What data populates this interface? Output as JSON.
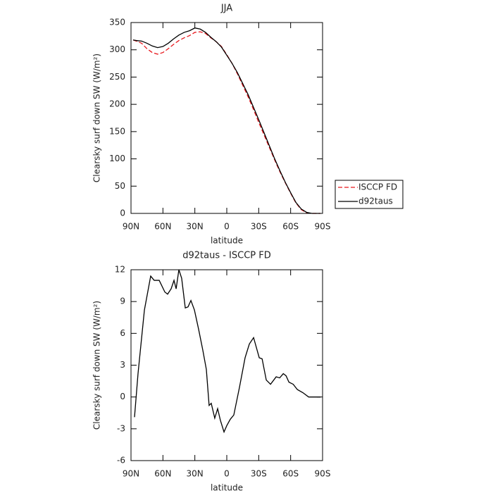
{
  "chart_data": [
    {
      "type": "line",
      "title": "JJA",
      "xlabel": "latitude",
      "ylabel": "Clearsky surf down SW (W/m²)",
      "x": [
        88,
        85,
        80,
        75,
        70,
        65,
        60,
        55,
        50,
        45,
        40,
        35,
        30,
        25,
        20,
        15,
        10,
        5,
        0,
        -5,
        -10,
        -15,
        -20,
        -25,
        -30,
        -35,
        -40,
        -45,
        -50,
        -55,
        -60,
        -65,
        -70,
        -75,
        -80,
        -85,
        -88
      ],
      "series": [
        {
          "name": "ISCCP FD",
          "color": "#e8171c",
          "linestyle": "dashed",
          "values": [
            318,
            316,
            312,
            302,
            295,
            292,
            295,
            302,
            310,
            317,
            322,
            326,
            332,
            333,
            330,
            322,
            315,
            306,
            291,
            275,
            256,
            235,
            214,
            191,
            167,
            144,
            121,
            98,
            76,
            56,
            37,
            19,
            7,
            1,
            0,
            0,
            0
          ]
        },
        {
          "name": "d92taus",
          "color": "#000000",
          "linestyle": "solid",
          "values": [
            318,
            317,
            316,
            312,
            307,
            304,
            306,
            312,
            320,
            327,
            332,
            335,
            340,
            338,
            332,
            323,
            315,
            305,
            290,
            275,
            258,
            238,
            218,
            195,
            172,
            148,
            124,
            100,
            78,
            57,
            38,
            20,
            8,
            2,
            0,
            0,
            0
          ]
        }
      ],
      "xlim": [
        90,
        -90
      ],
      "xticks": [
        {
          "value": 90,
          "label": "90N"
        },
        {
          "value": 60,
          "label": "60N"
        },
        {
          "value": 30,
          "label": "30N"
        },
        0,
        {
          "value": -30,
          "label": "30S"
        },
        {
          "value": -60,
          "label": "60S"
        },
        {
          "value": -90,
          "label": "90S"
        }
      ],
      "ylim": [
        0,
        350
      ],
      "yticks": [
        0,
        50,
        100,
        150,
        200,
        250,
        300,
        350
      ],
      "legend": "right"
    },
    {
      "type": "line",
      "title": "d92taus - ISCCP FD",
      "xlabel": "latitude",
      "ylabel": "Clearsky surf down SW (W/m²)",
      "x": [
        86.7,
        83.4,
        77.4,
        71.5,
        68.2,
        63.5,
        58.2,
        55.6,
        52.3,
        49.6,
        47.6,
        45,
        42.4,
        39,
        36.4,
        33.7,
        30.4,
        26.5,
        22.5,
        19.2,
        16.6,
        14.6,
        11.3,
        8.6,
        6,
        2.6,
        0,
        -3.3,
        -6.6,
        -11.9,
        -17.2,
        -21.2,
        -25.2,
        -30.5,
        -33.2,
        -37.1,
        -41.1,
        -46.4,
        -49.7,
        -53.1,
        -55.7,
        -58.4,
        -62.4,
        -66.3,
        -71.6,
        -76.9,
        -82.9,
        -88.2
      ],
      "series": [
        {
          "name": "d92taus - ISCCP FD",
          "color": "#000000",
          "linestyle": "solid",
          "values": [
            -1.9,
            2.2,
            8.2,
            11.4,
            11,
            11,
            9.9,
            9.7,
            10.2,
            11,
            10.2,
            12,
            11.2,
            8.4,
            8.5,
            9.1,
            8.2,
            6.4,
            4.4,
            2.6,
            -0.8,
            -0.6,
            -2,
            -1.1,
            -2.2,
            -3.3,
            -2.7,
            -2.1,
            -1.7,
            0.9,
            3.7,
            5,
            5.6,
            3.7,
            3.6,
            1.6,
            1.2,
            1.9,
            1.8,
            2.2,
            2,
            1.4,
            1.2,
            0.7,
            0.4,
            0,
            0,
            0
          ]
        }
      ],
      "xlim": [
        90,
        -90
      ],
      "xticks": [
        {
          "value": 90,
          "label": "90N"
        },
        {
          "value": 60,
          "label": "60N"
        },
        {
          "value": 30,
          "label": "30N"
        },
        0,
        {
          "value": -30,
          "label": "30S"
        },
        {
          "value": -60,
          "label": "60S"
        },
        {
          "value": -90,
          "label": "90S"
        }
      ],
      "ylim": [
        -6,
        12
      ],
      "yticks": [
        -6,
        -3,
        0,
        3,
        6,
        9,
        12
      ]
    }
  ]
}
